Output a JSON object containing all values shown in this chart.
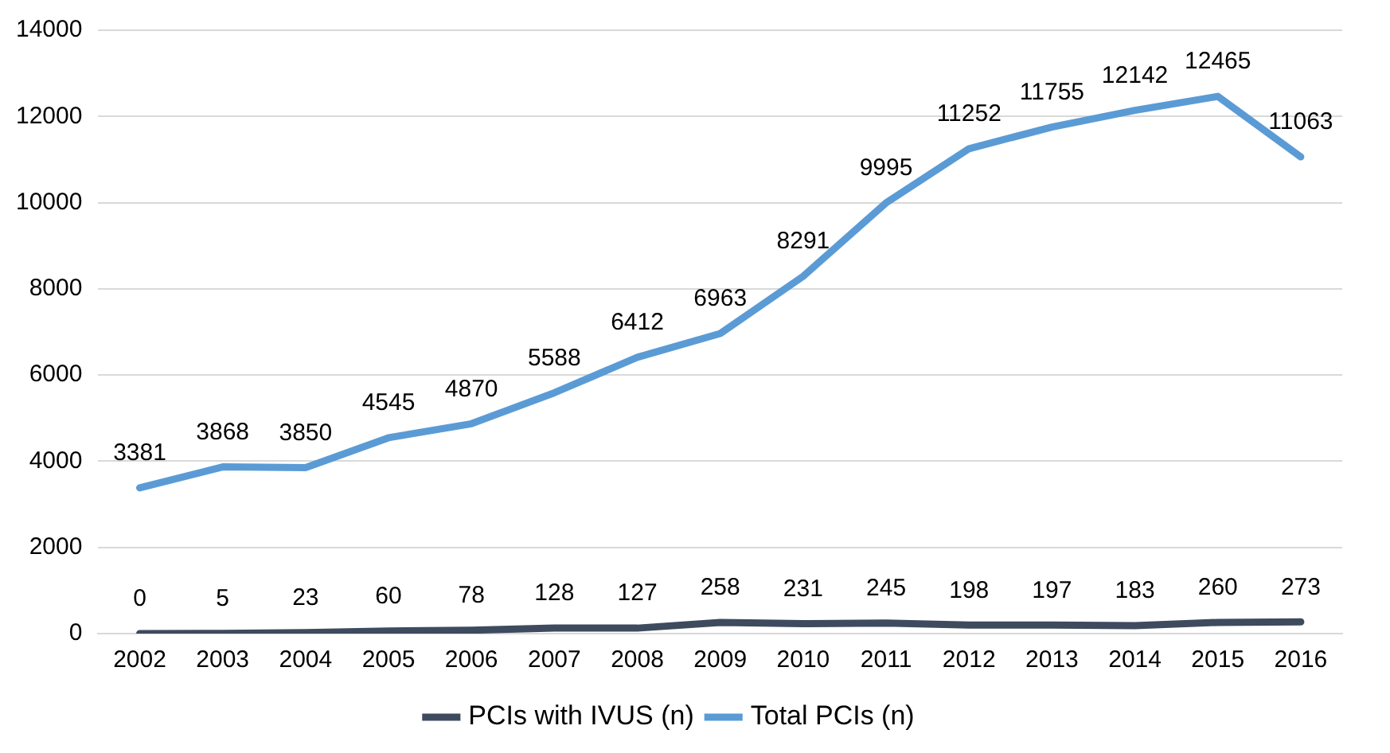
{
  "chart_data": {
    "type": "line",
    "categories": [
      "2002",
      "2003",
      "2004",
      "2005",
      "2006",
      "2007",
      "2008",
      "2009",
      "2010",
      "2011",
      "2012",
      "2013",
      "2014",
      "2015",
      "2016"
    ],
    "series": [
      {
        "name": "PCIs with IVUS (n)",
        "color": "#3e4a5e",
        "values": [
          0,
          5,
          23,
          60,
          78,
          128,
          127,
          258,
          231,
          245,
          198,
          197,
          183,
          260,
          273
        ]
      },
      {
        "name": "Total PCIs (n)",
        "color": "#5b9bd5",
        "values": [
          3381,
          3868,
          3850,
          4545,
          4870,
          5588,
          6412,
          6963,
          8291,
          9995,
          11252,
          11755,
          12142,
          12465,
          11063
        ]
      }
    ],
    "ylim": [
      0,
      14000
    ],
    "yticks": [
      0,
      2000,
      4000,
      6000,
      8000,
      10000,
      12000,
      14000
    ],
    "grid": "y",
    "legend": "bottom",
    "data_labels": true,
    "marker": "none",
    "line_style": "solid"
  }
}
